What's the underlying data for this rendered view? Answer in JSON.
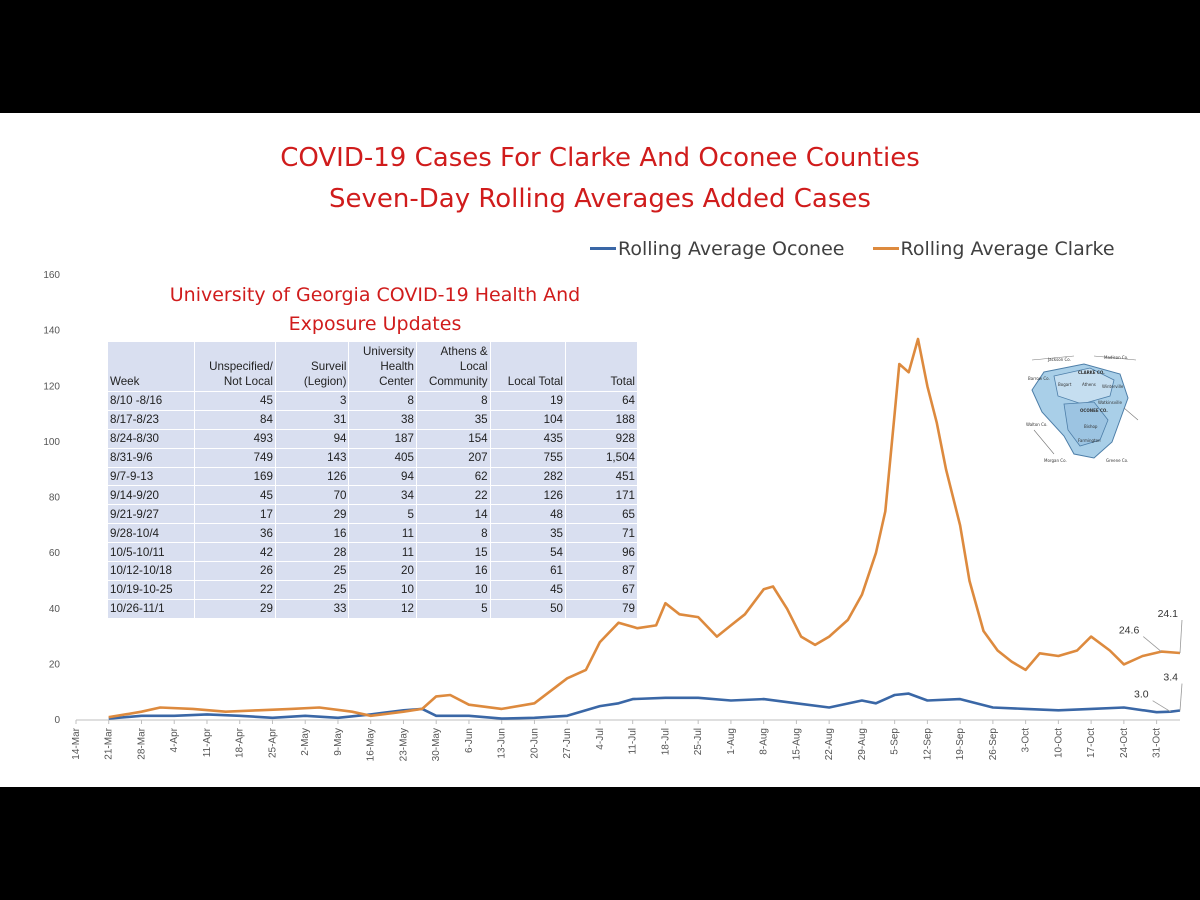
{
  "chart": {
    "title_line1": "COVID-19 Cases For Clarke And Oconee Counties",
    "title_line2": "Seven-Day Rolling Averages Added Cases",
    "colors": {
      "oconee": "#3a67a6",
      "clarke": "#dd8a3e",
      "title_red": "#d01c1c"
    }
  },
  "chart_data": {
    "type": "line",
    "title": "COVID-19 Cases For Clarke And Oconee Counties",
    "subtitle": "Seven-Day Rolling Averages Added Cases",
    "ylim": [
      0,
      160
    ],
    "yticks": [
      0,
      20,
      40,
      60,
      80,
      100,
      120,
      140,
      160
    ],
    "x_tick_labels": [
      "14-Mar",
      "21-Mar",
      "28-Mar",
      "4-Apr",
      "11-Apr",
      "18-Apr",
      "25-Apr",
      "2-May",
      "9-May",
      "16-May",
      "23-May",
      "30-May",
      "6-Jun",
      "13-Jun",
      "20-Jun",
      "27-Jun",
      "4-Jul",
      "11-Jul",
      "18-Jul",
      "25-Jul",
      "1-Aug",
      "8-Aug",
      "15-Aug",
      "22-Aug",
      "29-Aug",
      "5-Sep",
      "12-Sep",
      "19-Sep",
      "26-Sep",
      "3-Oct",
      "10-Oct",
      "17-Oct",
      "24-Oct",
      "31-Oct"
    ],
    "x_start": "2020-03-14",
    "x_end": "2020-11-05",
    "legend_position": "top-right",
    "grid": false,
    "series": [
      {
        "name": "Rolling Average Oconee",
        "color": "#3a67a6",
        "points": [
          [
            "2020-03-21",
            0.5
          ],
          [
            "2020-03-28",
            1.5
          ],
          [
            "2020-04-04",
            1.5
          ],
          [
            "2020-04-11",
            2.0
          ],
          [
            "2020-04-18",
            1.5
          ],
          [
            "2020-04-25",
            0.8
          ],
          [
            "2020-05-02",
            1.5
          ],
          [
            "2020-05-09",
            0.8
          ],
          [
            "2020-05-16",
            2.0
          ],
          [
            "2020-05-23",
            3.5
          ],
          [
            "2020-05-27",
            4.0
          ],
          [
            "2020-05-30",
            1.5
          ],
          [
            "2020-06-06",
            1.5
          ],
          [
            "2020-06-13",
            0.5
          ],
          [
            "2020-06-20",
            0.8
          ],
          [
            "2020-06-27",
            1.5
          ],
          [
            "2020-07-04",
            5.0
          ],
          [
            "2020-07-08",
            6.0
          ],
          [
            "2020-07-11",
            7.5
          ],
          [
            "2020-07-18",
            8.0
          ],
          [
            "2020-07-25",
            8.0
          ],
          [
            "2020-08-01",
            7.0
          ],
          [
            "2020-08-08",
            7.5
          ],
          [
            "2020-08-15",
            6.0
          ],
          [
            "2020-08-22",
            4.5
          ],
          [
            "2020-08-29",
            7.0
          ],
          [
            "2020-09-01",
            6.0
          ],
          [
            "2020-09-05",
            9.0
          ],
          [
            "2020-09-08",
            9.5
          ],
          [
            "2020-09-12",
            7.0
          ],
          [
            "2020-09-19",
            7.5
          ],
          [
            "2020-09-26",
            4.5
          ],
          [
            "2020-10-03",
            4.0
          ],
          [
            "2020-10-10",
            3.5
          ],
          [
            "2020-10-17",
            4.0
          ],
          [
            "2020-10-24",
            4.5
          ],
          [
            "2020-10-31",
            2.8
          ],
          [
            "2020-11-03",
            3.0
          ],
          [
            "2020-11-05",
            3.4
          ]
        ]
      },
      {
        "name": "Rolling Average Clarke",
        "color": "#dd8a3e",
        "points": [
          [
            "2020-03-21",
            1.0
          ],
          [
            "2020-03-28",
            3.0
          ],
          [
            "2020-04-01",
            4.5
          ],
          [
            "2020-04-08",
            4.0
          ],
          [
            "2020-04-15",
            3.0
          ],
          [
            "2020-04-22",
            3.5
          ],
          [
            "2020-04-29",
            4.0
          ],
          [
            "2020-05-05",
            4.5
          ],
          [
            "2020-05-12",
            3.0
          ],
          [
            "2020-05-16",
            1.5
          ],
          [
            "2020-05-23",
            3.0
          ],
          [
            "2020-05-27",
            4.0
          ],
          [
            "2020-05-30",
            8.5
          ],
          [
            "2020-06-02",
            9.0
          ],
          [
            "2020-06-06",
            5.5
          ],
          [
            "2020-06-13",
            4.0
          ],
          [
            "2020-06-20",
            6.0
          ],
          [
            "2020-06-27",
            15.0
          ],
          [
            "2020-07-01",
            18.0
          ],
          [
            "2020-07-04",
            28.0
          ],
          [
            "2020-07-08",
            35.0
          ],
          [
            "2020-07-12",
            33.0
          ],
          [
            "2020-07-16",
            34.0
          ],
          [
            "2020-07-18",
            42.0
          ],
          [
            "2020-07-21",
            38.0
          ],
          [
            "2020-07-25",
            37.0
          ],
          [
            "2020-07-29",
            30.0
          ],
          [
            "2020-08-01",
            34.0
          ],
          [
            "2020-08-04",
            38.0
          ],
          [
            "2020-08-08",
            47.0
          ],
          [
            "2020-08-10",
            48.0
          ],
          [
            "2020-08-13",
            40.0
          ],
          [
            "2020-08-16",
            30.0
          ],
          [
            "2020-08-19",
            27.0
          ],
          [
            "2020-08-22",
            30.0
          ],
          [
            "2020-08-26",
            36.0
          ],
          [
            "2020-08-29",
            45.0
          ],
          [
            "2020-09-01",
            60.0
          ],
          [
            "2020-09-03",
            75.0
          ],
          [
            "2020-09-05",
            110.0
          ],
          [
            "2020-09-06",
            128.0
          ],
          [
            "2020-09-08",
            125.0
          ],
          [
            "2020-09-10",
            137.0
          ],
          [
            "2020-09-12",
            120.0
          ],
          [
            "2020-09-14",
            107.0
          ],
          [
            "2020-09-16",
            90.0
          ],
          [
            "2020-09-19",
            70.0
          ],
          [
            "2020-09-21",
            50.0
          ],
          [
            "2020-09-24",
            32.0
          ],
          [
            "2020-09-27",
            25.0
          ],
          [
            "2020-09-30",
            21.0
          ],
          [
            "2020-10-03",
            18.0
          ],
          [
            "2020-10-06",
            24.0
          ],
          [
            "2020-10-10",
            23.0
          ],
          [
            "2020-10-14",
            25.0
          ],
          [
            "2020-10-17",
            30.0
          ],
          [
            "2020-10-21",
            25.0
          ],
          [
            "2020-10-24",
            20.0
          ],
          [
            "2020-10-28",
            23.0
          ],
          [
            "2020-11-01",
            24.6
          ],
          [
            "2020-11-05",
            24.1
          ]
        ]
      }
    ],
    "data_labels": [
      {
        "series": "Rolling Average Clarke",
        "date": "2020-11-01",
        "value": 24.6,
        "text": "24.6"
      },
      {
        "series": "Rolling Average Clarke",
        "date": "2020-11-05",
        "value": 24.1,
        "text": "24.1"
      },
      {
        "series": "Rolling Average Oconee",
        "date": "2020-11-03",
        "value": 3.0,
        "text": "3.0"
      },
      {
        "series": "Rolling Average Oconee",
        "date": "2020-11-05",
        "value": 3.4,
        "text": "3.4"
      }
    ]
  },
  "inset_table": {
    "title_line1": "University of Georgia COVID-19 Health And",
    "title_line2": "Exposure Updates",
    "headers": [
      [
        "Week"
      ],
      [
        "Unspecified/",
        "Not Local"
      ],
      [
        "Surveil",
        "(Legion)"
      ],
      [
        "University",
        "Health",
        "Center"
      ],
      [
        "Athens &",
        "Local",
        "Community"
      ],
      [
        "Local Total"
      ],
      [
        "Total"
      ]
    ],
    "rows": [
      [
        "8/10 -8/16",
        "45",
        "3",
        "8",
        "8",
        "19",
        "64"
      ],
      [
        "8/17-8/23",
        "84",
        "31",
        "38",
        "35",
        "104",
        "188"
      ],
      [
        "8/24-8/30",
        "493",
        "94",
        "187",
        "154",
        "435",
        "928"
      ],
      [
        "8/31-9/6",
        "749",
        "143",
        "405",
        "207",
        "755",
        "1,504"
      ],
      [
        "9/7-9-13",
        "169",
        "126",
        "94",
        "62",
        "282",
        "451"
      ],
      [
        "9/14-9/20",
        "45",
        "70",
        "34",
        "22",
        "126",
        "171"
      ],
      [
        "9/21-9/27",
        "17",
        "29",
        "5",
        "14",
        "48",
        "65"
      ],
      [
        "9/28-10/4",
        "36",
        "16",
        "11",
        "8",
        "35",
        "71"
      ],
      [
        "10/5-10/11",
        "42",
        "28",
        "11",
        "15",
        "54",
        "96"
      ],
      [
        "10/12-10/18",
        "26",
        "25",
        "20",
        "16",
        "61",
        "87"
      ],
      [
        "10/19-10-25",
        "22",
        "25",
        "10",
        "10",
        "45",
        "67"
      ],
      [
        "10/26-11/1",
        "29",
        "33",
        "12",
        "5",
        "50",
        "79"
      ]
    ]
  },
  "map": {
    "labels": [
      "Jackson Co.",
      "Madison Co.",
      "Barrow Co.",
      "CLARKE CO.",
      "Bogart",
      "Athens",
      "Winterville",
      "OCONEE CO.",
      "Watkinsville",
      "Walton Co.",
      "Bishop",
      "Farmington",
      "Morgan Co.",
      "Greene Co."
    ]
  }
}
